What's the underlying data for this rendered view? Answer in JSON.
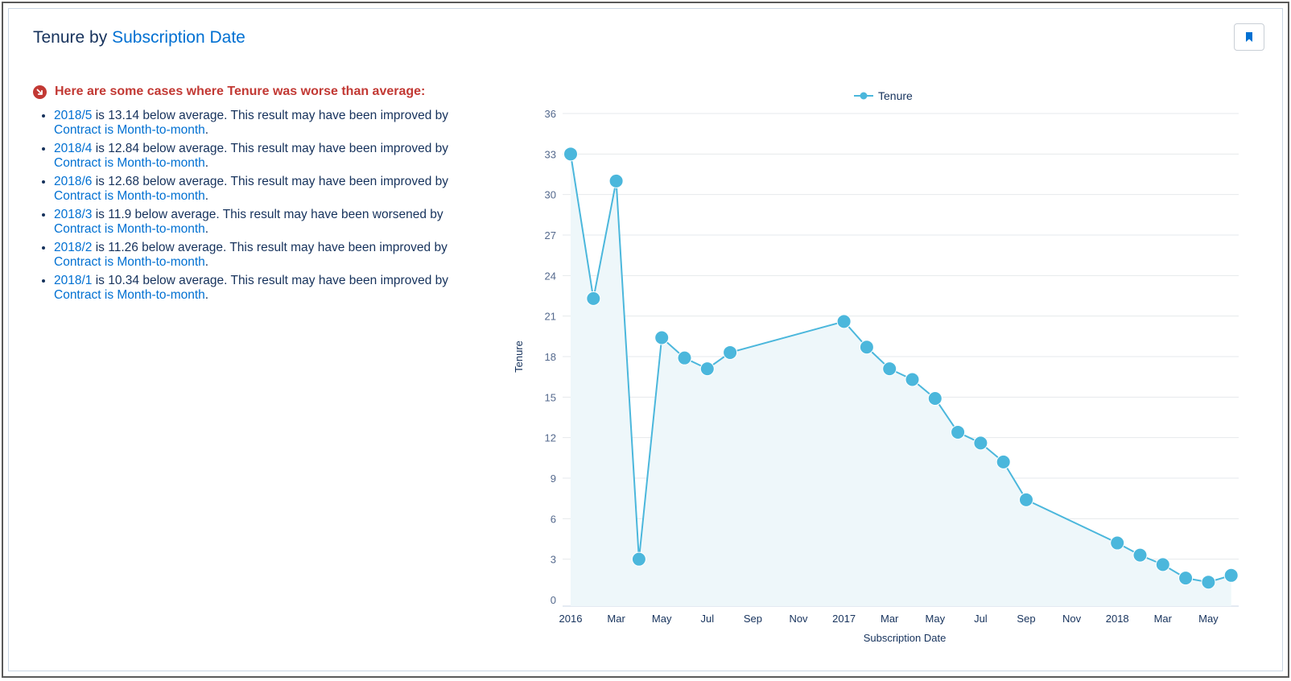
{
  "header": {
    "title_prefix": "Tenure by",
    "title_link": "Subscription Date"
  },
  "insights": {
    "heading": "Here are some cases where Tenure was worse than average:",
    "items": [
      {
        "period": "2018/5",
        "text": " is 13.14 below average. This result may have been improved by",
        "factor": "Contract is Month-to-month",
        "end": "."
      },
      {
        "period": "2018/4",
        "text": " is 12.84 below average. This result may have been improved by",
        "factor": "Contract is Month-to-month",
        "end": "."
      },
      {
        "period": "2018/6",
        "text": " is 12.68 below average. This result may have been improved by",
        "factor": "Contract is Month-to-month",
        "end": "."
      },
      {
        "period": "2018/3",
        "text": " is 11.9 below average. This result may have been worsened by",
        "factor": "Contract is Month-to-month",
        "end": "."
      },
      {
        "period": "2018/2",
        "text": " is 11.26 below average. This result may have been improved by",
        "factor": "Contract is Month-to-month",
        "end": "."
      },
      {
        "period": "2018/1",
        "text": " is 10.34 below average. This result may have been improved by",
        "factor": "Contract is Month-to-month",
        "end": "."
      }
    ]
  },
  "icons": {
    "bookmark": "bookmark-icon",
    "worse": "arrow-down-right-icon"
  },
  "colors": {
    "series": "#4bb7dc",
    "area": "#eef7fa",
    "negative": "#c23934",
    "link": "#0070d2"
  },
  "chart_data": {
    "type": "line",
    "xlabel": "Subscription Date",
    "ylabel": "Tenure",
    "ylim": [
      0,
      36
    ],
    "yticks": [
      0,
      3,
      6,
      9,
      12,
      15,
      18,
      21,
      24,
      27,
      30,
      33,
      36
    ],
    "xtick_labels": [
      "2016",
      "Mar",
      "May",
      "Jul",
      "Sep",
      "Nov",
      "2017",
      "Mar",
      "May",
      "Jul",
      "Sep",
      "Nov",
      "2018",
      "Mar",
      "May"
    ],
    "legend": "top-center",
    "grid": true,
    "series": [
      {
        "name": "Tenure",
        "x": [
          "2016-01",
          "2016-02",
          "2016-03",
          "2016-04",
          "2016-05",
          "2016-06",
          "2016-07",
          "2016-08",
          "2017-01",
          "2017-02",
          "2017-03",
          "2017-04",
          "2017-05",
          "2017-06",
          "2017-07",
          "2017-08",
          "2017-09",
          "2018-01",
          "2018-02",
          "2018-03",
          "2018-04",
          "2018-05",
          "2018-06"
        ],
        "values": [
          33.0,
          22.3,
          31.0,
          3.0,
          19.4,
          17.9,
          17.1,
          18.3,
          20.6,
          18.7,
          17.1,
          16.3,
          14.9,
          12.4,
          11.6,
          10.2,
          7.4,
          4.2,
          3.3,
          2.6,
          1.6,
          1.3,
          1.8
        ]
      }
    ]
  }
}
